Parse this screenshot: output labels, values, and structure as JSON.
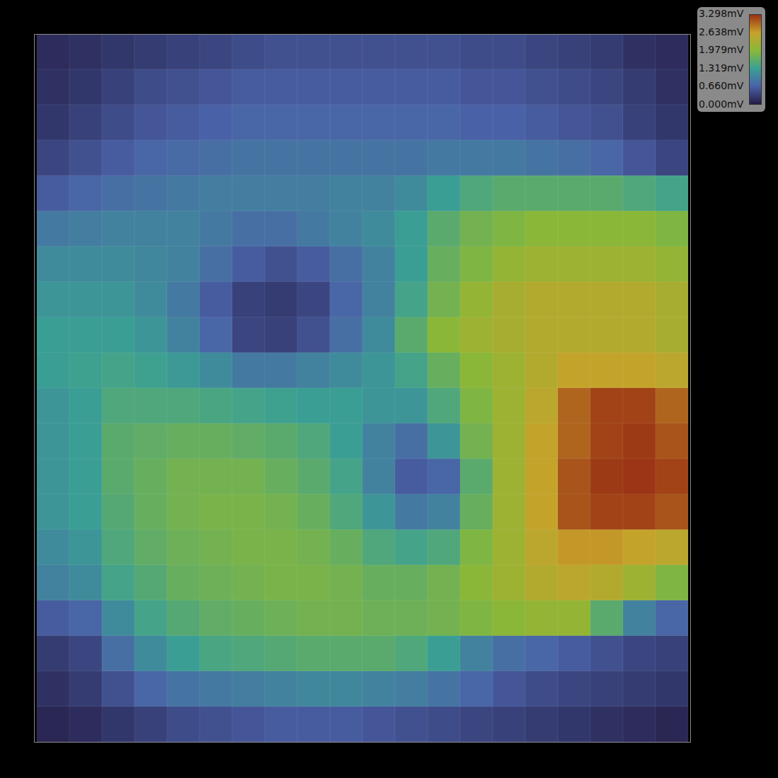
{
  "chart_data": {
    "type": "heatmap",
    "tick_labels": false,
    "values": [
      [
        0.15,
        0.2,
        0.25,
        0.3,
        0.35,
        0.4,
        0.45,
        0.5,
        0.5,
        0.5,
        0.5,
        0.5,
        0.5,
        0.45,
        0.45,
        0.4,
        0.35,
        0.3,
        0.2,
        0.15
      ],
      [
        0.2,
        0.25,
        0.35,
        0.45,
        0.5,
        0.55,
        0.6,
        0.6,
        0.6,
        0.6,
        0.6,
        0.6,
        0.6,
        0.55,
        0.55,
        0.5,
        0.45,
        0.4,
        0.3,
        0.2
      ],
      [
        0.25,
        0.35,
        0.45,
        0.55,
        0.6,
        0.65,
        0.7,
        0.7,
        0.7,
        0.7,
        0.7,
        0.7,
        0.7,
        0.65,
        0.65,
        0.6,
        0.55,
        0.5,
        0.35,
        0.25
      ],
      [
        0.4,
        0.5,
        0.6,
        0.7,
        0.75,
        0.8,
        0.85,
        0.85,
        0.85,
        0.85,
        0.85,
        0.85,
        0.9,
        0.9,
        0.9,
        0.85,
        0.8,
        0.7,
        0.55,
        0.4
      ],
      [
        0.6,
        0.7,
        0.8,
        0.85,
        0.9,
        0.95,
        0.95,
        0.95,
        0.95,
        1.0,
        1.0,
        1.1,
        1.3,
        1.5,
        1.6,
        1.6,
        1.6,
        1.6,
        1.5,
        1.4
      ],
      [
        0.9,
        0.95,
        1.0,
        1.0,
        1.0,
        0.9,
        0.8,
        0.8,
        0.9,
        1.0,
        1.1,
        1.3,
        1.6,
        1.8,
        1.9,
        2.0,
        2.0,
        2.0,
        2.0,
        1.9
      ],
      [
        1.1,
        1.1,
        1.1,
        1.05,
        1.0,
        0.8,
        0.6,
        0.5,
        0.6,
        0.8,
        1.0,
        1.3,
        1.7,
        1.9,
        2.1,
        2.2,
        2.2,
        2.2,
        2.2,
        2.1
      ],
      [
        1.2,
        1.2,
        1.2,
        1.1,
        0.9,
        0.6,
        0.35,
        0.3,
        0.4,
        0.7,
        1.0,
        1.4,
        1.8,
        2.1,
        2.3,
        2.4,
        2.4,
        2.4,
        2.4,
        2.3
      ],
      [
        1.3,
        1.3,
        1.3,
        1.2,
        1.0,
        0.7,
        0.4,
        0.35,
        0.5,
        0.8,
        1.1,
        1.6,
        2.0,
        2.2,
        2.3,
        2.4,
        2.4,
        2.4,
        2.4,
        2.3
      ],
      [
        1.3,
        1.35,
        1.4,
        1.35,
        1.25,
        1.1,
        0.9,
        0.9,
        1.0,
        1.1,
        1.2,
        1.4,
        1.7,
        2.0,
        2.2,
        2.4,
        2.6,
        2.6,
        2.6,
        2.5
      ],
      [
        1.2,
        1.3,
        1.5,
        1.5,
        1.5,
        1.45,
        1.4,
        1.35,
        1.3,
        1.3,
        1.2,
        1.2,
        1.5,
        1.9,
        2.2,
        2.5,
        3.0,
        3.2,
        3.2,
        3.0
      ],
      [
        1.2,
        1.3,
        1.6,
        1.65,
        1.7,
        1.7,
        1.65,
        1.6,
        1.5,
        1.3,
        1.0,
        0.8,
        1.2,
        1.8,
        2.2,
        2.6,
        3.0,
        3.2,
        3.25,
        3.1
      ],
      [
        1.2,
        1.3,
        1.6,
        1.7,
        1.8,
        1.8,
        1.8,
        1.7,
        1.6,
        1.4,
        1.0,
        0.6,
        0.7,
        1.6,
        2.2,
        2.6,
        3.1,
        3.25,
        3.28,
        3.2
      ],
      [
        1.2,
        1.3,
        1.55,
        1.7,
        1.8,
        1.85,
        1.85,
        1.8,
        1.7,
        1.5,
        1.2,
        0.9,
        1.0,
        1.7,
        2.2,
        2.6,
        3.1,
        3.2,
        3.2,
        3.1
      ],
      [
        1.1,
        1.2,
        1.5,
        1.65,
        1.75,
        1.8,
        1.85,
        1.85,
        1.8,
        1.7,
        1.5,
        1.4,
        1.5,
        1.9,
        2.2,
        2.5,
        2.7,
        2.7,
        2.6,
        2.5
      ],
      [
        1.0,
        1.1,
        1.4,
        1.55,
        1.7,
        1.75,
        1.8,
        1.85,
        1.85,
        1.8,
        1.7,
        1.7,
        1.8,
        2.0,
        2.2,
        2.4,
        2.5,
        2.4,
        2.2,
        1.9
      ],
      [
        0.6,
        0.7,
        1.1,
        1.4,
        1.55,
        1.65,
        1.7,
        1.75,
        1.8,
        1.8,
        1.75,
        1.75,
        1.8,
        1.9,
        2.0,
        2.1,
        2.1,
        1.6,
        1.0,
        0.7
      ],
      [
        0.3,
        0.4,
        0.8,
        1.1,
        1.3,
        1.45,
        1.5,
        1.55,
        1.6,
        1.6,
        1.6,
        1.5,
        1.3,
        1.0,
        0.8,
        0.7,
        0.6,
        0.5,
        0.4,
        0.35
      ],
      [
        0.2,
        0.3,
        0.5,
        0.7,
        0.85,
        0.9,
        0.95,
        1.0,
        1.05,
        1.05,
        1.0,
        0.95,
        0.85,
        0.7,
        0.55,
        0.45,
        0.4,
        0.35,
        0.3,
        0.25
      ],
      [
        0.1,
        0.15,
        0.25,
        0.35,
        0.45,
        0.5,
        0.55,
        0.6,
        0.6,
        0.6,
        0.55,
        0.5,
        0.45,
        0.4,
        0.35,
        0.3,
        0.25,
        0.2,
        0.15,
        0.1
      ]
    ],
    "colorbar": {
      "range": [
        0,
        3.298
      ],
      "ticks": [
        {
          "value": 0,
          "label": "0.000mV"
        },
        {
          "value": 0.66,
          "label": "0.660mV"
        },
        {
          "value": 1.319,
          "label": "1.319mV"
        },
        {
          "value": 1.979,
          "label": "1.979mV"
        },
        {
          "value": 2.638,
          "label": "2.638mV"
        },
        {
          "value": 3.298,
          "label": "3.298mV"
        }
      ]
    }
  }
}
